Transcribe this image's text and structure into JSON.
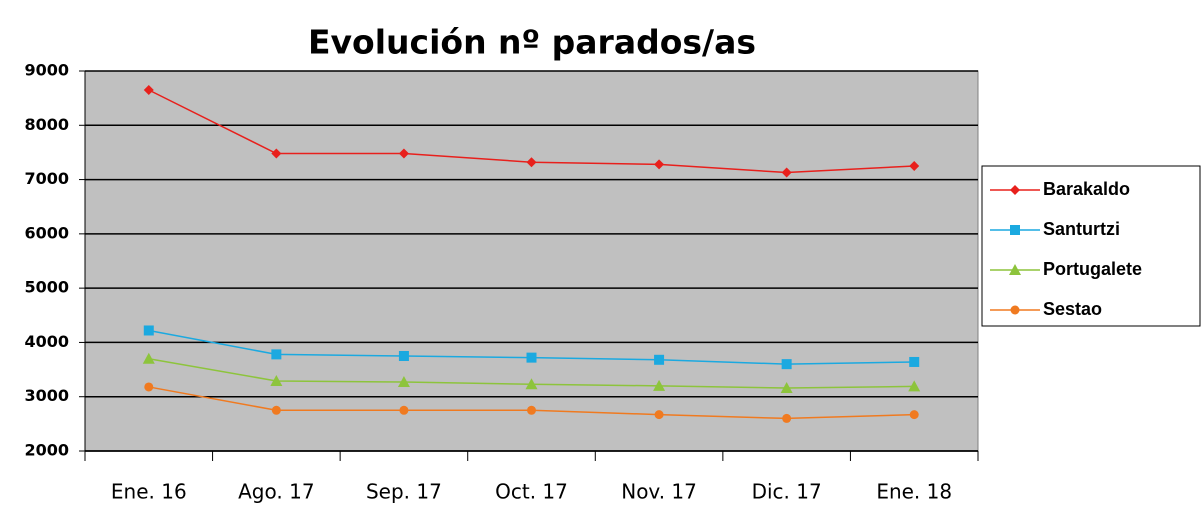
{
  "chart_data": {
    "type": "line",
    "title": "Evolución nº parados/as",
    "categories": [
      "Ene. 16",
      "Ago. 17",
      "Sep. 17",
      "Oct. 17",
      "Nov. 17",
      "Dic. 17",
      "Ene. 18"
    ],
    "series": [
      {
        "name": "Barakaldo",
        "color": "#e8201c",
        "marker": "diamond",
        "values": [
          8650,
          7480,
          7480,
          7320,
          7280,
          7130,
          7250
        ]
      },
      {
        "name": "Santurtzi",
        "color": "#1ba9e0",
        "marker": "square",
        "values": [
          4220,
          3780,
          3750,
          3720,
          3680,
          3600,
          3640
        ]
      },
      {
        "name": "Portugalete",
        "color": "#8dc43c",
        "marker": "triangle",
        "values": [
          3700,
          3290,
          3270,
          3230,
          3200,
          3160,
          3190
        ]
      },
      {
        "name": "Sestao",
        "color": "#f07a20",
        "marker": "circle",
        "values": [
          3180,
          2750,
          2750,
          2750,
          2670,
          2600,
          2670
        ]
      }
    ],
    "ylim": [
      2000,
      9000
    ],
    "yticks": [
      2000,
      3000,
      4000,
      5000,
      6000,
      7000,
      8000,
      9000
    ],
    "grid": true,
    "plot_background": "#c0c0c0",
    "legend": "right"
  }
}
